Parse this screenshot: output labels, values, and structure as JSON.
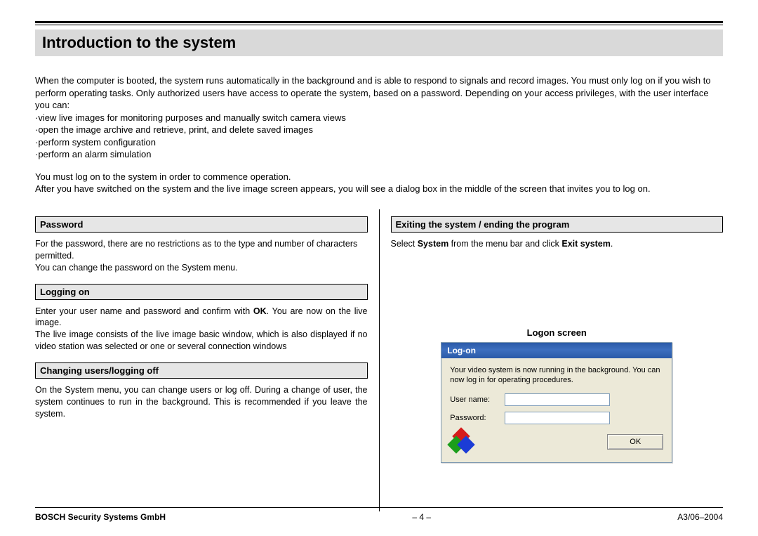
{
  "title": "Introduction to the system",
  "intro": {
    "para1": "When the computer is booted, the system runs automatically in the background and is able to respond to signals and record images. You must only log on if you wish to perform operating tasks. Only authorized users have access to operate the system, based on a password. Depending on your access privileges, with the user interface you can:",
    "b1": "·view live images for monitoring purposes and manually switch camera views",
    "b2": "·open the image archive and retrieve, print, and delete saved images",
    "b3": "·perform system configuration",
    "b4": "·perform an alarm simulation",
    "para2a": "You must log on to the system in order to commence operation.",
    "para2b": "After you have switched on the system and the live image screen appears, you will see a dialog box in the middle of the screen that invites you to log on."
  },
  "left": {
    "s1": {
      "head": "Password",
      "body": "For the password, there are no restrictions as to the type and number of characters permitted.\nYou can change the password on the System menu."
    },
    "s2": {
      "head": "Logging on",
      "body_pre": "Enter your user name and password and confirm with ",
      "body_bold": "OK",
      "body_post": ". You are now on the live image.\nThe live image consists of the live image basic window, which is also displayed if no video station was selected or one or several connection windows"
    },
    "s3": {
      "head": "Changing users/logging off",
      "body": "On the System menu, you can change users or log off. During a change of user, the system continues to run in the background. This is recommended if you leave the system."
    }
  },
  "right": {
    "s1": {
      "head": "Exiting the system / ending the program",
      "body_pre": "Select ",
      "b1": "System",
      "mid": " from the menu bar and click ",
      "b2": "Exit system",
      "post": "."
    },
    "logon_caption": "Logon screen",
    "dialog": {
      "title": "Log-on",
      "msg": "Your video system is now running in the background. You can now log in for operating procedures.",
      "user_label": "User name:",
      "pass_label": "Password:",
      "ok": "OK"
    }
  },
  "footer": {
    "left": "BOSCH Security Systems GmbH",
    "center": "–  4  –",
    "right": "A3/06–2004"
  },
  "colors": {
    "band_bg": "#d9d9d9",
    "section_bg": "#e6e6e6",
    "dialog_bg": "#ece9d8",
    "titlebar_a": "#2a5aa8",
    "titlebar_b": "#3d6fbf",
    "input_border": "#7f9db9"
  }
}
